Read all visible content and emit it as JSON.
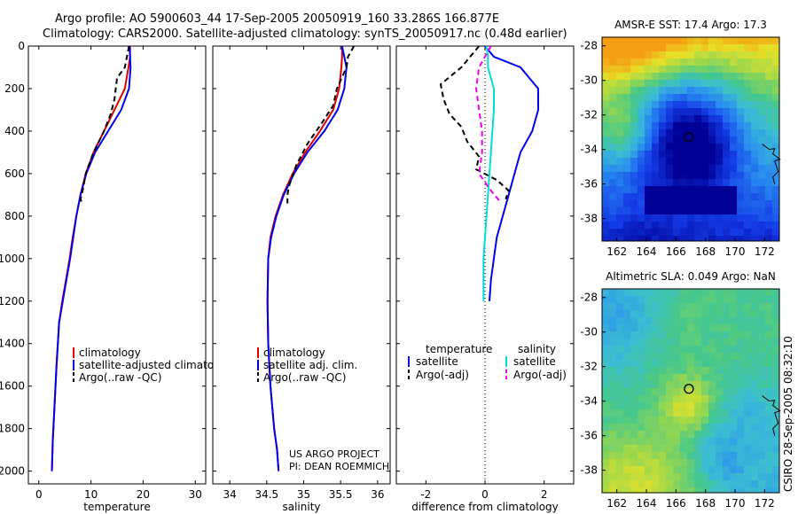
{
  "figure": {
    "title_line1": "Argo profile: AO 5900603_44 17-Sep-2005 20050919_160 33.286S 166.877E",
    "title_line2": "Climatology: CARS2000. Satellite-adjusted climatology: synTS_20050917.nc (0.48d earlier)",
    "side_text": "CSIRO 28-Sep-2005 08:32:10",
    "project_line1": "US ARGO PROJECT",
    "project_line2": "PI: DEAN ROEMMICH"
  },
  "colors": {
    "climatology": "#dd0000",
    "satellite": "#0000ee",
    "argo": "#000000",
    "salinity_satellite": "#00dddd",
    "salinity_argo": "#ee00ee",
    "zero_line": "#000000"
  },
  "chart_data": [
    {
      "id": "temperature",
      "type": "line",
      "xlabel": "temperature",
      "ylabel": "",
      "xlim": [
        -2,
        32
      ],
      "ylim": [
        2060,
        0
      ],
      "xticks": [
        0,
        10,
        20,
        30
      ],
      "yticks": [
        0,
        200,
        400,
        600,
        800,
        1000,
        1200,
        1400,
        1600,
        1800,
        2000
      ],
      "legend": [
        "climatology",
        "satellite-adjusted climatology",
        "Argo(..raw -QC)"
      ],
      "series": [
        {
          "name": "climatology",
          "color_key": "climatology",
          "dash": false,
          "x": [
            17.5,
            17.5,
            17.2,
            16.5,
            14.5,
            12.5,
            10.5,
            9.0,
            8.0,
            7.2,
            6.5,
            5.9,
            5.2,
            4.5,
            3.9,
            3.4,
            3.0,
            2.7,
            2.5
          ],
          "y": [
            0,
            50,
            100,
            200,
            300,
            400,
            500,
            600,
            700,
            800,
            900,
            1000,
            1100,
            1200,
            1300,
            1500,
            1700,
            1850,
            2000
          ]
        },
        {
          "name": "satellite-adjusted climatology",
          "color_key": "satellite",
          "dash": false,
          "x": [
            17.4,
            17.5,
            17.6,
            17.3,
            15.8,
            13.3,
            10.8,
            9.1,
            8.0,
            7.2,
            6.6,
            6.0,
            5.3,
            4.6,
            3.9,
            3.4,
            3.0,
            2.7,
            2.5
          ],
          "y": [
            0,
            50,
            100,
            200,
            300,
            400,
            500,
            600,
            700,
            800,
            900,
            1000,
            1100,
            1200,
            1300,
            1500,
            1700,
            1850,
            2000
          ]
        },
        {
          "name": "Argo(..raw -QC)",
          "color_key": "argo",
          "dash": true,
          "x": [
            17.3,
            16.5,
            15.0,
            14.5,
            13.8,
            12.5,
            10.5,
            9.0,
            8.4,
            8.0,
            8.3
          ],
          "y": [
            0,
            100,
            150,
            250,
            320,
            400,
            500,
            600,
            680,
            720,
            740
          ]
        }
      ]
    },
    {
      "id": "salinity",
      "type": "line",
      "xlabel": "salinity",
      "ylabel": "",
      "xlim": [
        33.77,
        36.17
      ],
      "ylim": [
        2060,
        0
      ],
      "xticks": [
        34,
        34.5,
        35,
        35.5,
        36
      ],
      "yticks": [
        0,
        200,
        400,
        600,
        800,
        1000,
        1200,
        1400,
        1600,
        1800,
        2000
      ],
      "legend": [
        "climatology",
        "satellite adj. clim.",
        "Argo(..raw -QC)"
      ],
      "series": [
        {
          "name": "climatology",
          "color_key": "climatology",
          "dash": false,
          "x": [
            35.52,
            35.52,
            35.51,
            35.48,
            35.4,
            35.22,
            35.02,
            34.85,
            34.72,
            34.62,
            34.55,
            34.52,
            34.51,
            34.52,
            34.55,
            34.6,
            34.64,
            34.66
          ],
          "y": [
            0,
            50,
            100,
            200,
            300,
            400,
            500,
            600,
            700,
            800,
            900,
            1000,
            1200,
            1400,
            1600,
            1800,
            1900,
            2000
          ]
        },
        {
          "name": "satellite adj. clim.",
          "color_key": "satellite",
          "dash": false,
          "x": [
            35.52,
            35.55,
            35.58,
            35.55,
            35.46,
            35.28,
            35.05,
            34.87,
            34.73,
            34.63,
            34.56,
            34.52,
            34.51,
            34.52,
            34.55,
            34.6,
            34.64,
            34.66
          ],
          "y": [
            0,
            50,
            100,
            200,
            300,
            400,
            500,
            600,
            700,
            800,
            900,
            1000,
            1200,
            1400,
            1600,
            1800,
            1900,
            2000
          ]
        },
        {
          "name": "Argo(..raw -QC)",
          "color_key": "argo",
          "dash": true,
          "x": [
            35.68,
            35.6,
            35.58,
            35.45,
            35.4,
            35.25,
            35.05,
            34.9,
            34.8,
            34.78,
            34.78
          ],
          "y": [
            0,
            50,
            100,
            200,
            280,
            360,
            460,
            560,
            660,
            700,
            740
          ]
        }
      ]
    },
    {
      "id": "difference",
      "type": "line",
      "xlabel": "difference from climatology",
      "ylabel": "",
      "xlim": [
        -3,
        3
      ],
      "ylim": [
        2060,
        0
      ],
      "xticks": [
        -2,
        0,
        2
      ],
      "yticks": [
        0,
        200,
        400,
        600,
        800,
        1000,
        1200,
        1400,
        1600,
        1800,
        2000
      ],
      "legend_headers": [
        "temperature",
        "salinity"
      ],
      "legend": [
        "satellite",
        "Argo(-adj)",
        "satellite",
        "Argo(-adj)"
      ],
      "series": [
        {
          "name": "temperature satellite",
          "color_key": "satellite",
          "dash": false,
          "x": [
            0.0,
            0.3,
            1.2,
            1.8,
            1.8,
            1.6,
            1.2,
            1.0,
            0.8,
            0.6,
            0.4,
            0.3,
            0.2,
            0.15
          ],
          "y": [
            0,
            50,
            100,
            200,
            300,
            400,
            500,
            600,
            700,
            800,
            900,
            1000,
            1100,
            1200
          ]
        },
        {
          "name": "temperature Argo(-adj)",
          "color_key": "argo",
          "dash": true,
          "x": [
            -0.2,
            -0.8,
            -1.5,
            -1.4,
            -1.2,
            -0.8,
            -0.6,
            -0.2,
            -0.3,
            0.4,
            0.8,
            0.7
          ],
          "y": [
            0,
            100,
            180,
            250,
            320,
            380,
            450,
            520,
            580,
            630,
            680,
            720
          ]
        },
        {
          "name": "salinity satellite",
          "color_key": "salinity_satellite",
          "dash": false,
          "x": [
            0.05,
            0.1,
            0.1,
            0.3,
            0.3,
            0.25,
            0.2,
            0.15,
            0.1,
            0.05,
            0.0,
            -0.05,
            -0.05
          ],
          "y": [
            0,
            50,
            100,
            200,
            300,
            400,
            500,
            600,
            700,
            800,
            900,
            1000,
            1200
          ]
        },
        {
          "name": "salinity Argo(-adj)",
          "color_key": "salinity_argo",
          "dash": true,
          "x": [
            0.2,
            -0.2,
            -0.3,
            -0.2,
            -0.1,
            -0.1,
            -0.2,
            0.2,
            0.5
          ],
          "y": [
            0,
            100,
            200,
            300,
            400,
            500,
            600,
            680,
            730
          ]
        }
      ]
    },
    {
      "id": "sst_map",
      "type": "heatmap",
      "title": "AMSR-E SST: 17.4 Argo: 17.3",
      "xlim": [
        161,
        173
      ],
      "ylim": [
        -39.3,
        -27.5
      ],
      "xticks": [
        162,
        164,
        166,
        168,
        170,
        172
      ],
      "yticks": [
        -28,
        -30,
        -32,
        -34,
        -36,
        -38
      ],
      "marker": {
        "lon": 166.877,
        "lat": -33.286
      }
    },
    {
      "id": "sla_map",
      "type": "heatmap",
      "title": "Altimetric SLA: 0.049 Argo: NaN",
      "xlim": [
        161,
        173
      ],
      "ylim": [
        -39.3,
        -27.5
      ],
      "xticks": [
        162,
        164,
        166,
        168,
        170,
        172
      ],
      "yticks": [
        -28,
        -30,
        -32,
        -34,
        -36,
        -38
      ],
      "marker": {
        "lon": 166.877,
        "lat": -33.286
      }
    }
  ]
}
